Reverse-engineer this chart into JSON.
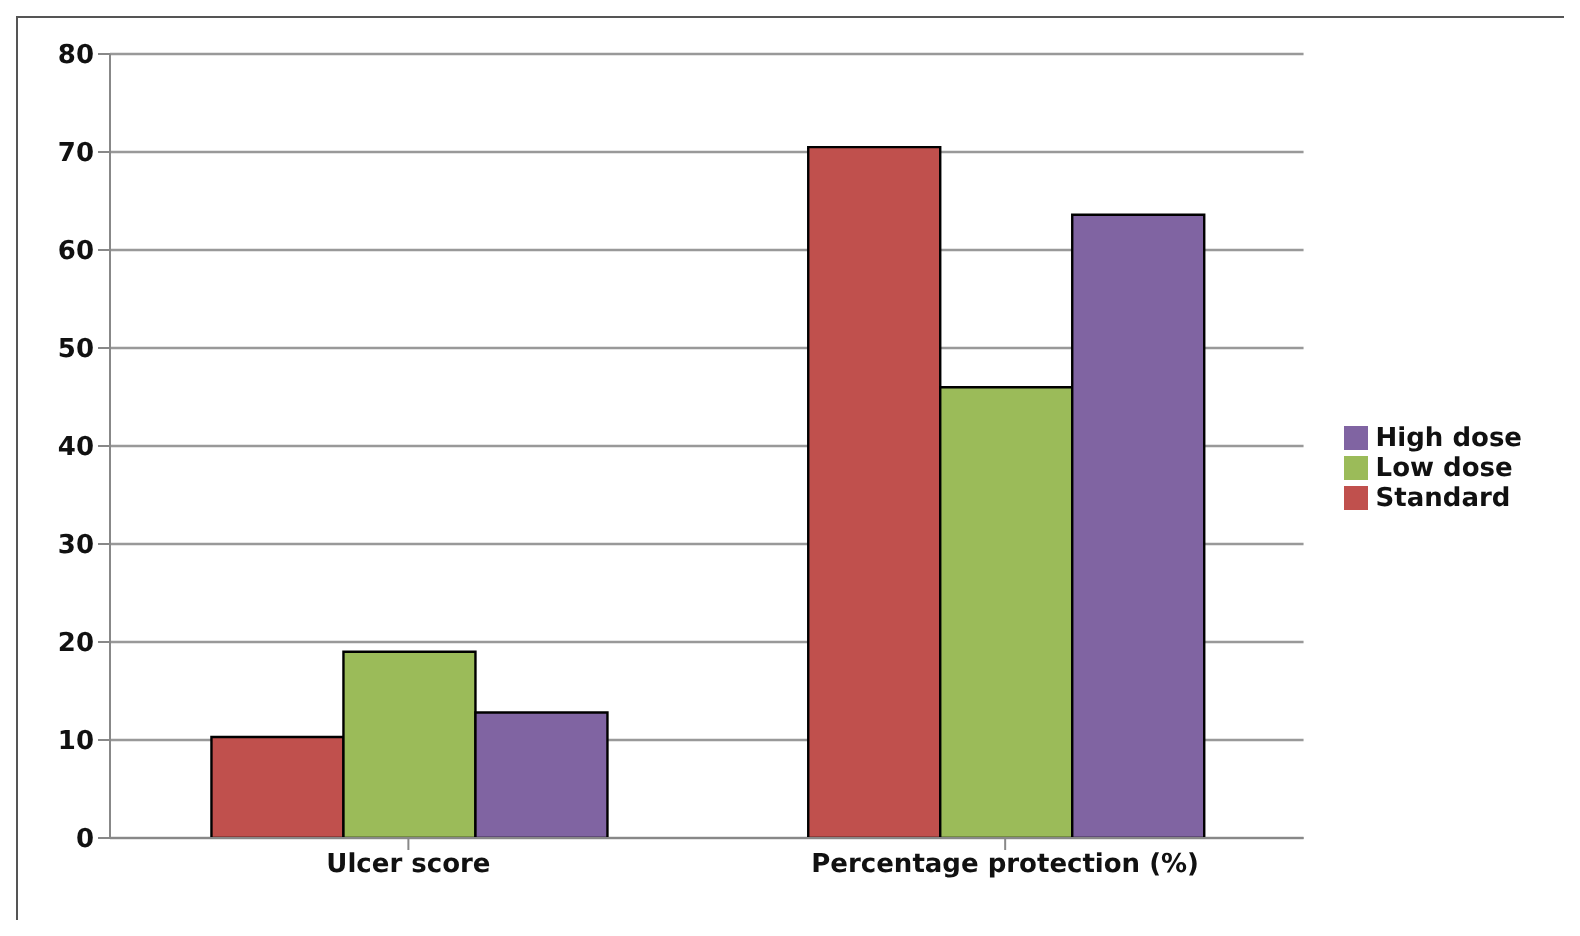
{
  "chart_data": {
    "type": "bar",
    "categories": [
      "Ulcer score",
      "Percentage protection (%)"
    ],
    "series": [
      {
        "name": "Standard",
        "color": "#c0504d",
        "values": [
          10.3,
          70.5
        ]
      },
      {
        "name": "Low dose",
        "color": "#9bbb59",
        "values": [
          19.0,
          46.0
        ]
      },
      {
        "name": "High dose",
        "color": "#8064a2",
        "values": [
          12.8,
          63.6
        ]
      }
    ],
    "ylim": [
      0,
      80
    ],
    "yticks": [
      0,
      10,
      20,
      30,
      40,
      50,
      60,
      70,
      80
    ],
    "grid": "y",
    "legend": "right"
  }
}
